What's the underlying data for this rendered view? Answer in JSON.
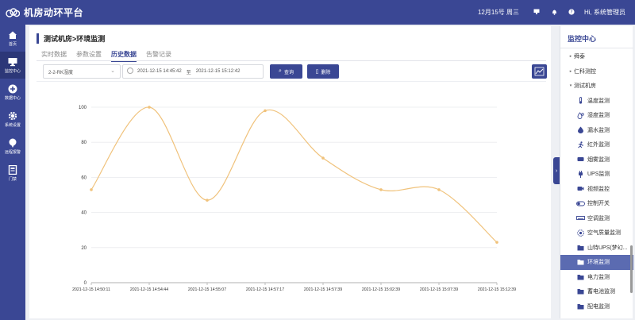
{
  "header": {
    "title": "机房动环平台",
    "date": "12月15号 周三",
    "user": "Hi, 系统管理员"
  },
  "nav": [
    {
      "label": "首页",
      "icon": "home-icon"
    },
    {
      "label": "监控中心",
      "icon": "monitor-icon",
      "active": true
    },
    {
      "label": "数据中心",
      "icon": "data-icon"
    },
    {
      "label": "系统设置",
      "icon": "gear-icon"
    },
    {
      "label": "远程报警",
      "icon": "alarm-icon"
    },
    {
      "label": "门禁",
      "icon": "door-icon"
    }
  ],
  "main": {
    "title": "测试机房>环境监测",
    "tabs": [
      {
        "label": "实时数据"
      },
      {
        "label": "参数设置"
      },
      {
        "label": "历史数据",
        "active": true
      },
      {
        "label": "告警记录"
      }
    ],
    "filter": {
      "sensor": "2-2-RK湿度",
      "start": "2021-12-15 14:45:42",
      "to": "至",
      "end": "2021-12-15 15:12:42",
      "search_label": "查询",
      "delete_label": "删除"
    }
  },
  "chart_data": {
    "type": "line",
    "x": [
      "2021-12-15 14:50:11",
      "2021-12-15 14:54:44",
      "2021-12-15 14:55:07",
      "2021-12-15 14:57:17",
      "2021-12-15 14:57:39",
      "2021-12-15 15:02:39",
      "2021-12-15 15:07:39",
      "2021-12-15 15:12:39"
    ],
    "series": [
      {
        "values": [
          53,
          100,
          47,
          98,
          71,
          53,
          53,
          23
        ]
      }
    ],
    "ylim": [
      0,
      100
    ],
    "yticks": [
      0,
      20,
      40,
      60,
      80,
      100
    ],
    "grid": true,
    "line_color": "#f0c27b"
  },
  "right_panel": {
    "title": "监控中心",
    "tree": [
      {
        "label": "舜泰",
        "level": 0,
        "caret": "▸"
      },
      {
        "label": "仁科测控",
        "level": 0,
        "caret": "▸"
      },
      {
        "label": "测试机房",
        "level": 0,
        "caret": "▾"
      },
      {
        "label": "温度监测",
        "level": 1,
        "icon": "thermometer-icon"
      },
      {
        "label": "湿度监测",
        "level": 1,
        "icon": "humidity-icon"
      },
      {
        "label": "漏水监测",
        "level": 1,
        "icon": "water-drop-icon"
      },
      {
        "label": "红外监测",
        "level": 1,
        "icon": "running-man-icon"
      },
      {
        "label": "烟雾监测",
        "level": 1,
        "icon": "smoke-detector-icon"
      },
      {
        "label": "UPS监测",
        "level": 1,
        "icon": "plug-icon"
      },
      {
        "label": "视频监控",
        "level": 1,
        "icon": "video-camera-icon"
      },
      {
        "label": "控制开关",
        "level": 1,
        "icon": "toggle-icon"
      },
      {
        "label": "空调监测",
        "level": 1,
        "icon": "air-conditioner-icon"
      },
      {
        "label": "空气质量监测",
        "level": 1,
        "icon": "air-quality-icon"
      },
      {
        "label": "山特UPS(梦幻...",
        "level": 1,
        "icon": "folder-icon"
      },
      {
        "label": "环境监测",
        "level": 1,
        "icon": "folder-icon",
        "selected": true
      },
      {
        "label": "电力监测",
        "level": 1,
        "icon": "folder-icon"
      },
      {
        "label": "蓄电池监测",
        "level": 1,
        "icon": "folder-icon"
      },
      {
        "label": "配电监测",
        "level": 1,
        "icon": "folder-icon"
      }
    ]
  }
}
